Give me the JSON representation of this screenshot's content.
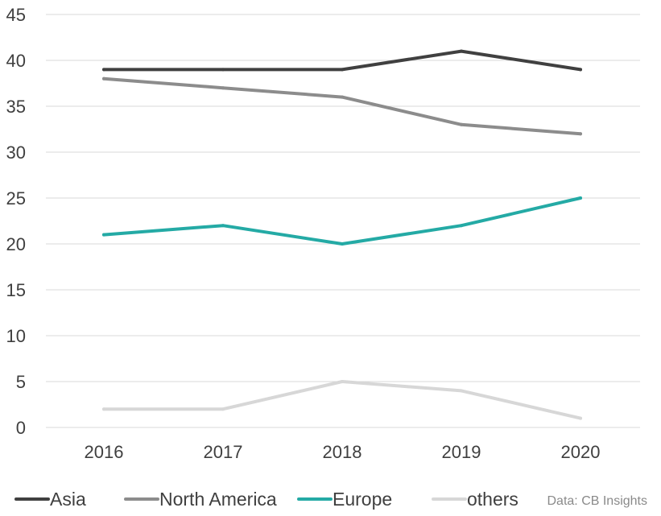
{
  "chart_data": {
    "type": "line",
    "title": "",
    "xlabel": "",
    "ylabel": "",
    "categories": [
      "2016",
      "2017",
      "2018",
      "2019",
      "2020"
    ],
    "ylim": [
      0,
      45
    ],
    "yticks": [
      "0",
      "5",
      "10",
      "15",
      "20",
      "25",
      "30",
      "35",
      "40",
      "45"
    ],
    "grid": true,
    "legend_position": "bottom",
    "series": [
      {
        "name": "Asia",
        "color": "#404040",
        "values": [
          39,
          39,
          39,
          41,
          39
        ]
      },
      {
        "name": "North America",
        "color": "#8c8c8c",
        "values": [
          38,
          37,
          36,
          33,
          32
        ]
      },
      {
        "name": "Europe",
        "color": "#24aaa5",
        "values": [
          21,
          22,
          20,
          22,
          25
        ]
      },
      {
        "name": "others",
        "color": "#d7d7d7",
        "values": [
          2,
          2,
          5,
          4,
          1
        ]
      }
    ],
    "source": "Data: CB Insights"
  }
}
